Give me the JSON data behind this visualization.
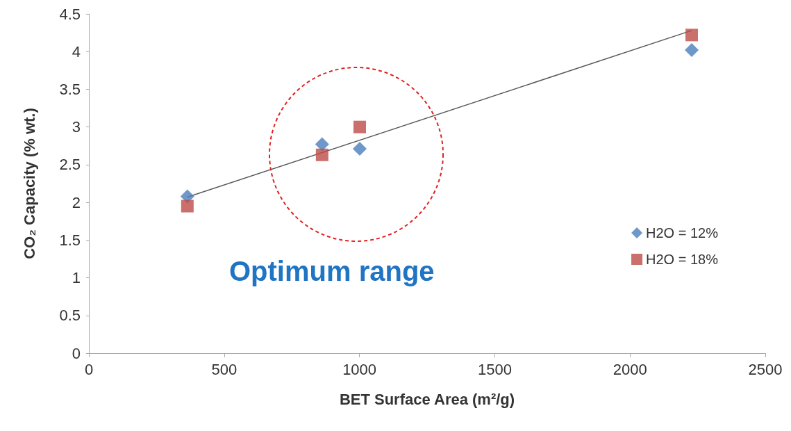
{
  "chart_data": {
    "type": "scatter",
    "xlabel": "BET Surface Area (m²/g)",
    "ylabel": "CO₂ Capacity (% wt.)",
    "xlim": [
      0,
      2500
    ],
    "xticks": [
      0,
      500,
      1000,
      1500,
      2000,
      2500
    ],
    "ylim": [
      0,
      4.5
    ],
    "yticks": [
      0,
      0.5,
      1,
      1.5,
      2,
      2.5,
      3,
      3.5,
      4,
      4.5
    ],
    "grid": false,
    "legend": "right",
    "series": [
      {
        "name": "H2O = 12%",
        "color": "#4a7ebb",
        "marker": "diamond",
        "x": [
          364,
          862,
          1001,
          2228
        ],
        "values": [
          2.08,
          2.77,
          2.71,
          4.02
        ]
      },
      {
        "name": "H2O = 18%",
        "color": "#be4b48",
        "marker": "square",
        "x": [
          364,
          862,
          1001,
          2228
        ],
        "values": [
          1.95,
          2.63,
          3.0,
          4.22
        ]
      },
      {
        "type": "line",
        "color": "#595959",
        "marker": "none",
        "x": [
          364,
          2228
        ],
        "values": [
          2.07,
          4.28
        ]
      }
    ],
    "annotations": [
      "Optimum range"
    ]
  }
}
